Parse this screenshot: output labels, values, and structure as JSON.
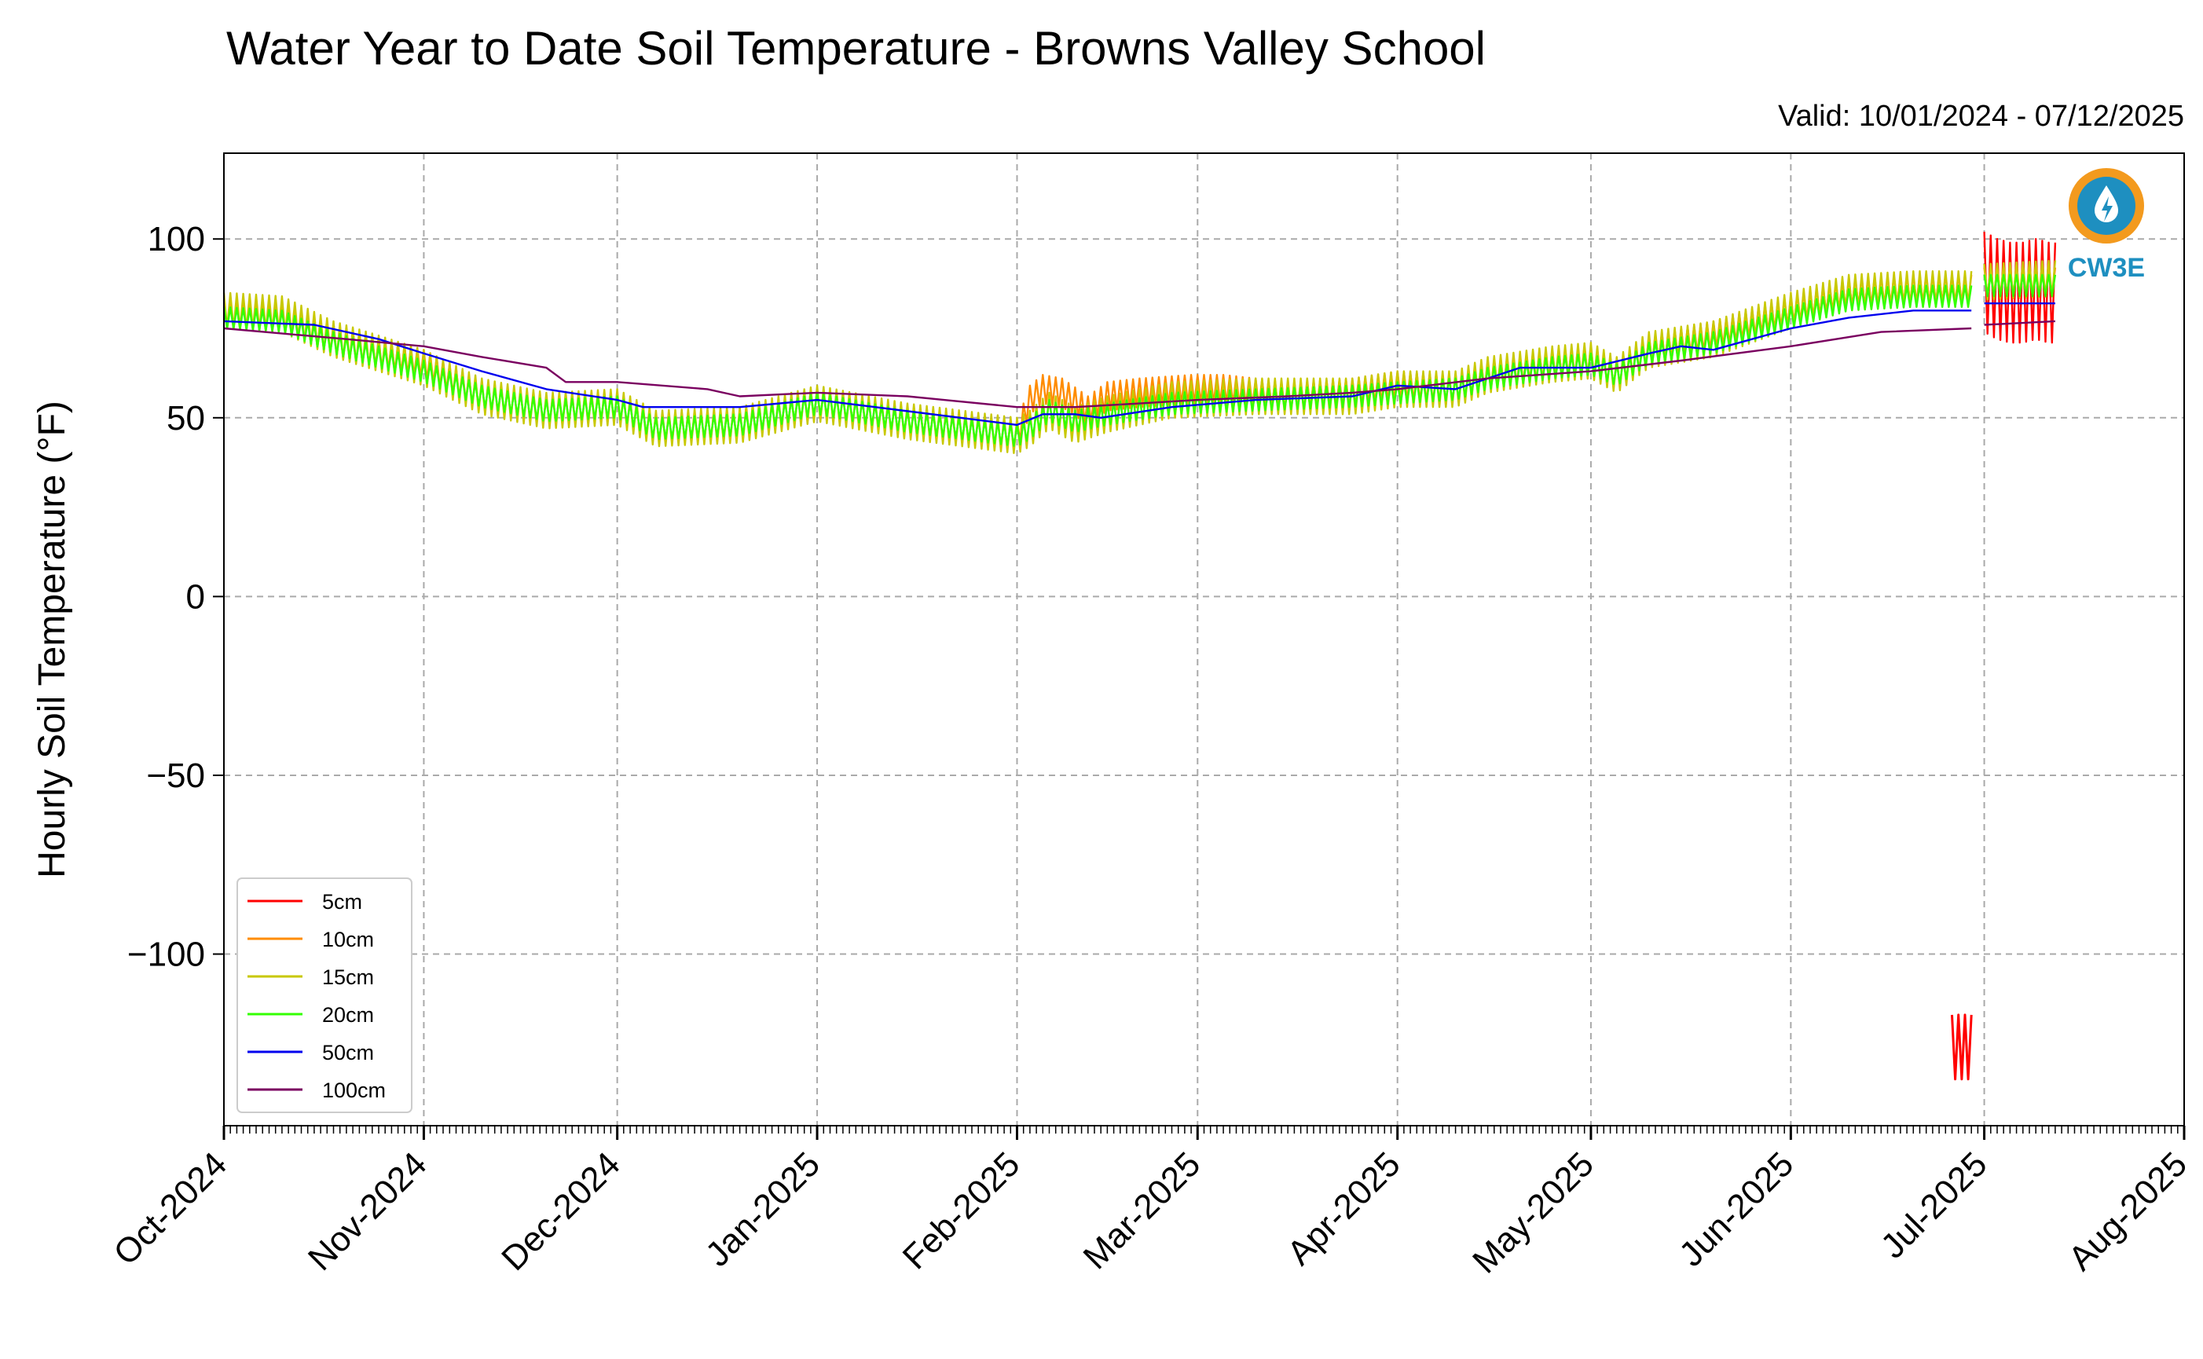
{
  "chart_data": {
    "type": "line",
    "title": "Water Year to Date Soil Temperature - Browns Valley School",
    "subtitle": "Valid: 10/01/2024 - 07/12/2025",
    "xlabel": "",
    "ylabel": "Hourly Soil Temperature (°F)",
    "xlim": [
      "2024-10-01",
      "2025-08-01"
    ],
    "ylim": [
      -148,
      124
    ],
    "yticks": [
      100,
      50,
      0,
      -50,
      -100
    ],
    "ytick_labels": [
      "100",
      "50",
      "0",
      "−50",
      "−100"
    ],
    "xticks": [
      "2024-10-01",
      "2024-11-01",
      "2024-12-01",
      "2025-01-01",
      "2025-02-01",
      "2025-03-01",
      "2025-04-01",
      "2025-05-01",
      "2025-06-01",
      "2025-07-01",
      "2025-08-01"
    ],
    "xtick_labels": [
      "Oct-2024",
      "Nov-2024",
      "Dec-2024",
      "Jan-2025",
      "Feb-2025",
      "Mar-2025",
      "Apr-2025",
      "May-2025",
      "Jun-2025",
      "Jul-2025",
      "Aug-2025"
    ],
    "grid": true,
    "legend_position": "lower-left",
    "logo_text": "CW3E",
    "series": [
      {
        "name": "5cm",
        "color": "#ff0000",
        "points": [
          [
            "2025-07-01",
            88
          ],
          [
            "2025-07-03",
            86
          ],
          [
            "2025-07-05",
            85
          ],
          [
            "2025-07-07",
            85
          ],
          [
            "2025-07-09",
            86
          ],
          [
            "2025-07-11",
            85
          ],
          [
            "2025-07-12",
            85
          ]
        ],
        "amp": 14,
        "segments": [
          {
            "points": [
              [
                "2025-06-26",
                -126
              ],
              [
                "2025-06-29",
                -126
              ]
            ],
            "amp": 9
          }
        ]
      },
      {
        "name": "10cm",
        "color": "#ff8c00",
        "points": [
          [
            "2024-10-01",
            79
          ],
          [
            "2024-10-10",
            78
          ],
          [
            "2024-10-20",
            70
          ],
          [
            "2024-11-01",
            65
          ],
          [
            "2024-11-10",
            56
          ],
          [
            "2024-11-20",
            52
          ],
          [
            "2024-12-01",
            53
          ],
          [
            "2024-12-07",
            47
          ],
          [
            "2024-12-20",
            48
          ],
          [
            "2025-01-01",
            54
          ],
          [
            "2025-01-15",
            49
          ],
          [
            "2025-02-01",
            45
          ],
          [
            "2025-02-03",
            55
          ],
          [
            "2025-02-05",
            58
          ],
          [
            "2025-02-08",
            57
          ],
          [
            "2025-02-12",
            52
          ],
          [
            "2025-02-15",
            56
          ],
          [
            "2025-02-20",
            57
          ],
          [
            "2025-02-28",
            58
          ],
          [
            "2025-03-05",
            58
          ],
          [
            "2025-03-15",
            56
          ],
          [
            "2025-03-25",
            57
          ],
          [
            "2025-04-01",
            59
          ],
          [
            "2025-04-10",
            58
          ],
          [
            "2025-04-15",
            62
          ],
          [
            "2025-04-25",
            65
          ],
          [
            "2025-05-01",
            66
          ],
          [
            "2025-05-05",
            62
          ],
          [
            "2025-05-10",
            69
          ],
          [
            "2025-05-20",
            73
          ],
          [
            "2025-06-01",
            80
          ],
          [
            "2025-06-10",
            85
          ],
          [
            "2025-06-20",
            86
          ],
          [
            "2025-06-29",
            86
          ],
          [
            null,
            null
          ],
          [
            "2025-07-01",
            88
          ],
          [
            "2025-07-12",
            88
          ]
        ],
        "amp": 4
      },
      {
        "name": "15cm",
        "color": "#c8c800",
        "points": [
          [
            "2024-10-01",
            80
          ],
          [
            "2024-10-10",
            79
          ],
          [
            "2024-10-18",
            72
          ],
          [
            "2024-11-01",
            64
          ],
          [
            "2024-11-10",
            56
          ],
          [
            "2024-11-20",
            52
          ],
          [
            "2024-12-01",
            53
          ],
          [
            "2024-12-07",
            47
          ],
          [
            "2024-12-20",
            48
          ],
          [
            "2025-01-01",
            54
          ],
          [
            "2025-01-15",
            49
          ],
          [
            "2025-02-01",
            45
          ],
          [
            "2025-02-03",
            47
          ],
          [
            "2025-02-06",
            52
          ],
          [
            "2025-02-10",
            48
          ],
          [
            "2025-02-15",
            51
          ],
          [
            "2025-02-25",
            55
          ],
          [
            "2025-03-10",
            56
          ],
          [
            "2025-03-25",
            56
          ],
          [
            "2025-04-01",
            58
          ],
          [
            "2025-04-10",
            58
          ],
          [
            "2025-04-15",
            62
          ],
          [
            "2025-04-25",
            65
          ],
          [
            "2025-05-01",
            66
          ],
          [
            "2025-05-05",
            62
          ],
          [
            "2025-05-10",
            69
          ],
          [
            "2025-05-20",
            72
          ],
          [
            "2025-06-01",
            80
          ],
          [
            "2025-06-10",
            85
          ],
          [
            "2025-06-20",
            86
          ],
          [
            "2025-06-29",
            86
          ],
          [
            null,
            null
          ],
          [
            "2025-07-01",
            88
          ],
          [
            "2025-07-12",
            89
          ]
        ],
        "amp": 5
      },
      {
        "name": "20cm",
        "color": "#33ff00",
        "points": [
          [
            "2024-10-01",
            78
          ],
          [
            "2024-10-10",
            77
          ],
          [
            "2024-10-18",
            71
          ],
          [
            "2024-11-01",
            63
          ],
          [
            "2024-11-10",
            56
          ],
          [
            "2024-11-20",
            52
          ],
          [
            "2024-12-01",
            53
          ],
          [
            "2024-12-07",
            47
          ],
          [
            "2024-12-20",
            48
          ],
          [
            "2025-01-01",
            54
          ],
          [
            "2025-01-15",
            49
          ],
          [
            "2025-02-01",
            45
          ],
          [
            "2025-02-03",
            47
          ],
          [
            "2025-02-06",
            52
          ],
          [
            "2025-02-10",
            49
          ],
          [
            "2025-02-15",
            51
          ],
          [
            "2025-02-25",
            54
          ],
          [
            "2025-03-10",
            55
          ],
          [
            "2025-03-25",
            56
          ],
          [
            "2025-04-01",
            57
          ],
          [
            "2025-04-10",
            58
          ],
          [
            "2025-04-15",
            61
          ],
          [
            "2025-04-25",
            64
          ],
          [
            "2025-05-01",
            65
          ],
          [
            "2025-05-05",
            62
          ],
          [
            "2025-05-10",
            68
          ],
          [
            "2025-05-20",
            71
          ],
          [
            "2025-06-01",
            78
          ],
          [
            "2025-06-10",
            83
          ],
          [
            "2025-06-20",
            84
          ],
          [
            "2025-06-29",
            84
          ],
          [
            null,
            null
          ],
          [
            "2025-07-01",
            87
          ],
          [
            "2025-07-12",
            87
          ]
        ],
        "amp": 3
      },
      {
        "name": "50cm",
        "color": "#0000ee",
        "points": [
          [
            "2024-10-01",
            77
          ],
          [
            "2024-10-15",
            76
          ],
          [
            "2024-10-25",
            72
          ],
          [
            "2024-11-01",
            68
          ],
          [
            "2024-11-10",
            63
          ],
          [
            "2024-11-20",
            58
          ],
          [
            "2024-12-01",
            55
          ],
          [
            "2024-12-05",
            53
          ],
          [
            "2024-12-20",
            53
          ],
          [
            "2025-01-01",
            55
          ],
          [
            "2025-01-10",
            53
          ],
          [
            "2025-02-01",
            48
          ],
          [
            "2025-02-05",
            51
          ],
          [
            "2025-02-10",
            51
          ],
          [
            "2025-02-14",
            50
          ],
          [
            "2025-02-25",
            53
          ],
          [
            "2025-03-10",
            55
          ],
          [
            "2025-03-25",
            56
          ],
          [
            "2025-04-01",
            59
          ],
          [
            "2025-04-10",
            58
          ],
          [
            "2025-04-20",
            64
          ],
          [
            "2025-05-01",
            64
          ],
          [
            "2025-05-10",
            68
          ],
          [
            "2025-05-15",
            70
          ],
          [
            "2025-05-20",
            69
          ],
          [
            "2025-06-01",
            75
          ],
          [
            "2025-06-10",
            78
          ],
          [
            "2025-06-20",
            80
          ],
          [
            "2025-06-29",
            80
          ],
          [
            null,
            null
          ],
          [
            "2025-07-01",
            82
          ],
          [
            "2025-07-12",
            82
          ]
        ],
        "amp": 0
      },
      {
        "name": "100cm",
        "color": "#7a0060",
        "points": [
          [
            "2024-10-01",
            75
          ],
          [
            "2024-10-20",
            72
          ],
          [
            "2024-11-01",
            70
          ],
          [
            "2024-11-10",
            67
          ],
          [
            "2024-11-20",
            64
          ],
          [
            "2024-11-23",
            60
          ],
          [
            "2024-12-01",
            60
          ],
          [
            "2024-12-15",
            58
          ],
          [
            "2024-12-20",
            56
          ],
          [
            "2025-01-01",
            57
          ],
          [
            "2025-01-15",
            56
          ],
          [
            "2025-02-01",
            53
          ],
          [
            "2025-02-10",
            53
          ],
          [
            "2025-02-20",
            54
          ],
          [
            "2025-03-01",
            55
          ],
          [
            "2025-03-15",
            56
          ],
          [
            "2025-03-25",
            57
          ],
          [
            "2025-04-01",
            58
          ],
          [
            "2025-04-15",
            61
          ],
          [
            "2025-05-01",
            63
          ],
          [
            "2025-05-15",
            66
          ],
          [
            "2025-06-01",
            70
          ],
          [
            "2025-06-15",
            74
          ],
          [
            "2025-06-29",
            75
          ],
          [
            null,
            null
          ],
          [
            "2025-07-01",
            76
          ],
          [
            "2025-07-12",
            77
          ]
        ],
        "amp": 0
      }
    ]
  }
}
